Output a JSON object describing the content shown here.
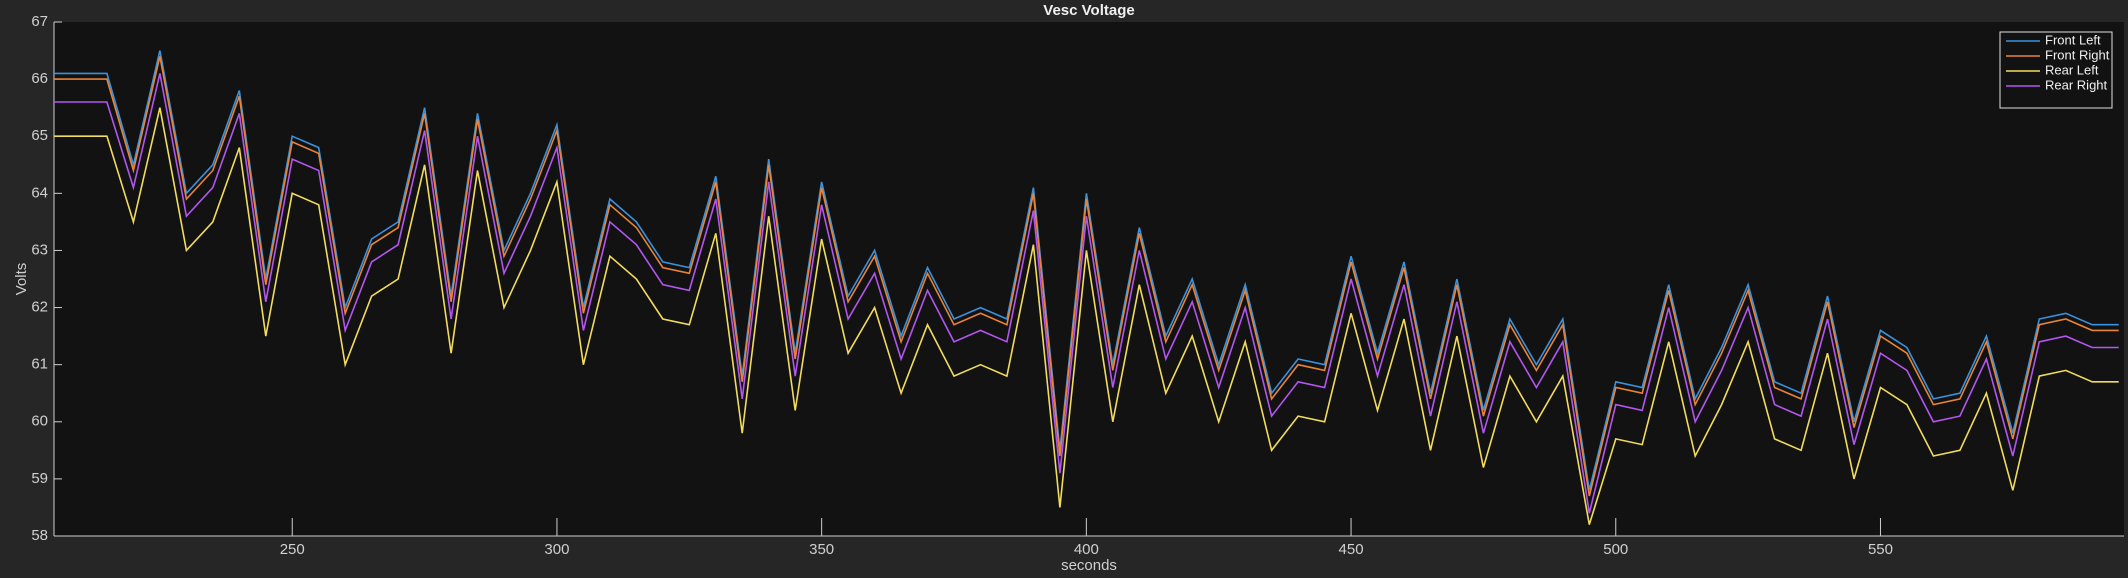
{
  "chart_data": {
    "type": "line",
    "title": "Vesc Voltage",
    "x_label": "seconds",
    "y_label": "Volts",
    "x": [
      205,
      210,
      215,
      220,
      225,
      230,
      235,
      240,
      245,
      250,
      255,
      260,
      265,
      270,
      275,
      280,
      285,
      290,
      295,
      300,
      305,
      310,
      315,
      320,
      325,
      330,
      335,
      340,
      345,
      350,
      355,
      360,
      365,
      370,
      375,
      380,
      385,
      390,
      395,
      400,
      405,
      410,
      415,
      420,
      425,
      430,
      435,
      440,
      445,
      450,
      455,
      460,
      465,
      470,
      475,
      480,
      485,
      490,
      495,
      500,
      505,
      510,
      515,
      520,
      525,
      530,
      535,
      540,
      545,
      550,
      555,
      560,
      565,
      570,
      575,
      580,
      585,
      590,
      595
    ],
    "series": [
      {
        "name": "Front Left",
        "color": "#3a92dd",
        "values": [
          66.1,
          66.1,
          66.1,
          64.5,
          66.5,
          64.0,
          64.5,
          65.8,
          62.5,
          65.0,
          64.8,
          62.0,
          63.2,
          63.5,
          65.5,
          62.2,
          65.4,
          63.0,
          64.0,
          65.2,
          62.0,
          63.9,
          63.5,
          62.8,
          62.7,
          64.3,
          60.8,
          64.6,
          61.2,
          64.2,
          62.2,
          63.0,
          61.5,
          62.7,
          61.8,
          62.0,
          61.8,
          64.1,
          59.5,
          64.0,
          61.0,
          63.4,
          61.5,
          62.5,
          61.0,
          62.4,
          60.5,
          61.1,
          61.0,
          62.9,
          61.2,
          62.8,
          60.5,
          62.5,
          60.2,
          61.8,
          61.0,
          61.8,
          58.8,
          60.7,
          60.6,
          62.4,
          60.4,
          61.3,
          62.4,
          60.7,
          60.5,
          62.2,
          60.0,
          61.6,
          61.3,
          60.4,
          60.5,
          61.5,
          59.8,
          61.8,
          61.9,
          61.7,
          61.7
        ]
      },
      {
        "name": "Front Right",
        "color": "#e8833a",
        "values": [
          66.0,
          66.0,
          66.0,
          64.4,
          66.4,
          63.9,
          64.4,
          65.7,
          62.4,
          64.9,
          64.7,
          61.9,
          63.1,
          63.4,
          65.4,
          62.1,
          65.3,
          62.9,
          63.9,
          65.1,
          61.9,
          63.8,
          63.4,
          62.7,
          62.6,
          64.2,
          60.7,
          64.5,
          61.1,
          64.1,
          62.1,
          62.9,
          61.4,
          62.6,
          61.7,
          61.9,
          61.7,
          64.0,
          59.4,
          63.9,
          60.9,
          63.3,
          61.4,
          62.4,
          60.9,
          62.3,
          60.4,
          61.0,
          60.9,
          62.8,
          61.1,
          62.7,
          60.4,
          62.4,
          60.1,
          61.7,
          60.9,
          61.7,
          58.7,
          60.6,
          60.5,
          62.3,
          60.3,
          61.2,
          62.3,
          60.6,
          60.4,
          62.1,
          59.9,
          61.5,
          61.2,
          60.3,
          60.4,
          61.4,
          59.7,
          61.7,
          61.8,
          61.6,
          61.6
        ]
      },
      {
        "name": "Rear Left",
        "color": "#f2dc5d",
        "values": [
          65.0,
          65.0,
          65.0,
          63.5,
          65.5,
          63.0,
          63.5,
          64.8,
          61.5,
          64.0,
          63.8,
          61.0,
          62.2,
          62.5,
          64.5,
          61.2,
          64.4,
          62.0,
          63.0,
          64.2,
          61.0,
          62.9,
          62.5,
          61.8,
          61.7,
          63.3,
          59.8,
          63.6,
          60.2,
          63.2,
          61.2,
          62.0,
          60.5,
          61.7,
          60.8,
          61.0,
          60.8,
          63.1,
          58.5,
          63.0,
          60.0,
          62.4,
          60.5,
          61.5,
          60.0,
          61.4,
          59.5,
          60.1,
          60.0,
          61.9,
          60.2,
          61.8,
          59.5,
          61.5,
          59.2,
          60.8,
          60.0,
          60.8,
          58.2,
          59.7,
          59.6,
          61.4,
          59.4,
          60.3,
          61.4,
          59.7,
          59.5,
          61.2,
          59.0,
          60.6,
          60.3,
          59.4,
          59.5,
          60.5,
          58.8,
          60.8,
          60.9,
          60.7,
          60.7
        ]
      },
      {
        "name": "Rear Right",
        "color": "#b356ef",
        "values": [
          65.6,
          65.6,
          65.6,
          64.1,
          66.1,
          63.6,
          64.1,
          65.4,
          62.1,
          64.6,
          64.4,
          61.6,
          62.8,
          63.1,
          65.1,
          61.8,
          65.0,
          62.6,
          63.6,
          64.8,
          61.6,
          63.5,
          63.1,
          62.4,
          62.3,
          63.9,
          60.4,
          64.2,
          60.8,
          63.8,
          61.8,
          62.6,
          61.1,
          62.3,
          61.4,
          61.6,
          61.4,
          63.7,
          59.1,
          63.6,
          60.6,
          63.0,
          61.1,
          62.1,
          60.6,
          62.0,
          60.1,
          60.7,
          60.6,
          62.5,
          60.8,
          62.4,
          60.1,
          62.1,
          59.8,
          61.4,
          60.6,
          61.4,
          58.4,
          60.3,
          60.2,
          62.0,
          60.0,
          60.9,
          62.0,
          60.3,
          60.1,
          61.8,
          59.6,
          61.2,
          60.9,
          60.0,
          60.1,
          61.1,
          59.4,
          61.4,
          61.5,
          61.3,
          61.3
        ]
      }
    ],
    "xlim": [
      205,
      596
    ],
    "ylim": [
      58,
      67
    ],
    "xticks": [
      250,
      300,
      350,
      400,
      450,
      500,
      550
    ],
    "yticks": [
      58,
      59,
      60,
      61,
      62,
      63,
      64,
      65,
      66,
      67
    ],
    "legend": "upper right"
  }
}
